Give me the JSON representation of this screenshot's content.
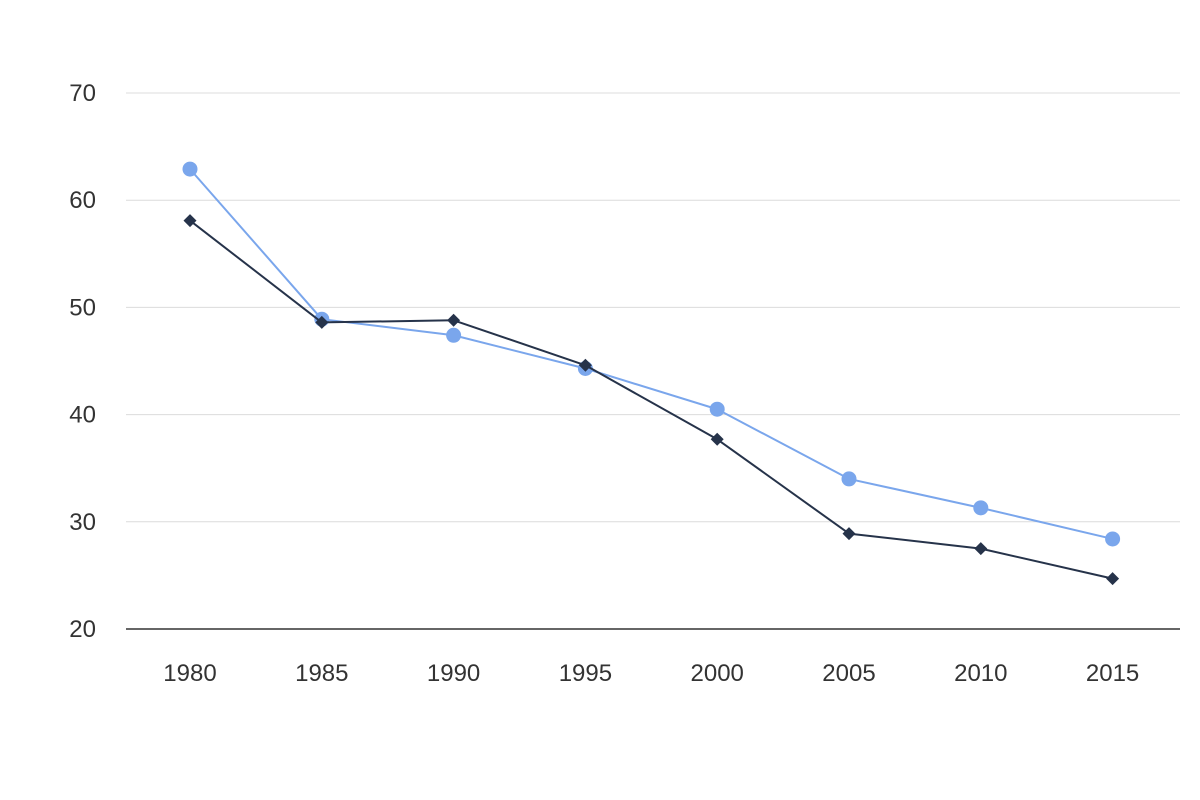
{
  "chart_data": {
    "type": "line",
    "title": "",
    "xlabel": "",
    "ylabel": "",
    "categories": [
      "1980",
      "1985",
      "1990",
      "1995",
      "2000",
      "2005",
      "2010",
      "2015"
    ],
    "y_ticks": [
      "20",
      "30",
      "40",
      "50",
      "60",
      "70"
    ],
    "ylim": [
      20,
      70
    ],
    "grid": true,
    "legend": "none",
    "series": [
      {
        "color": "#7aa6ec",
        "marker": "circle",
        "values": [
          62.9,
          48.9,
          47.4,
          44.3,
          40.5,
          34.0,
          31.3,
          28.4
        ]
      },
      {
        "color": "#26334a",
        "marker": "diamond",
        "values": [
          58.1,
          48.6,
          48.8,
          44.6,
          37.7,
          28.9,
          27.5,
          24.7
        ]
      }
    ]
  }
}
